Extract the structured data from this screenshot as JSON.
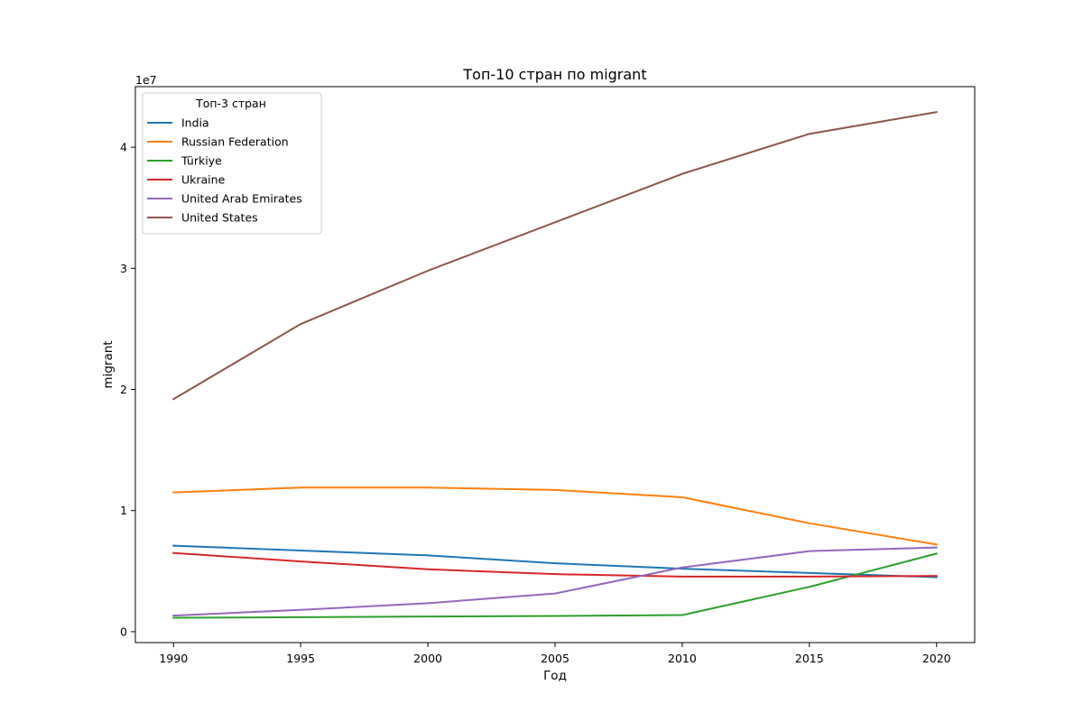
{
  "chart_data": {
    "type": "line",
    "title": "Топ-10 стран по migrant",
    "xlabel": "Год",
    "ylabel": "migrant",
    "offset_text": "1e7",
    "x": [
      1990,
      1995,
      2000,
      2005,
      2010,
      2015,
      2020
    ],
    "xticks": [
      1990,
      1995,
      2000,
      2005,
      2010,
      2015,
      2020
    ],
    "xlim": [
      1988.5,
      2021.5
    ],
    "yticks": [
      {
        "value": 0,
        "label": "0"
      },
      {
        "value": 10000000,
        "label": "1"
      },
      {
        "value": 20000000,
        "label": "2"
      },
      {
        "value": 30000000,
        "label": "3"
      },
      {
        "value": 40000000,
        "label": "4"
      }
    ],
    "ylim": [
      -900000,
      45000000
    ],
    "grid": false,
    "legend": {
      "title": "Топ-3 стран",
      "placement": "top-left"
    },
    "series": [
      {
        "name": "India",
        "color": "#1f77b4",
        "values": [
          7100000,
          6700000,
          6300000,
          5650000,
          5200000,
          4850000,
          4500000
        ]
      },
      {
        "name": "Russian Federation",
        "color": "#ff7f0e",
        "values": [
          11500000,
          11900000,
          11900000,
          11700000,
          11100000,
          8950000,
          7200000
        ]
      },
      {
        "name": "Türkiye",
        "color": "#2ca02c",
        "values": [
          1150000,
          1200000,
          1250000,
          1300000,
          1370000,
          3700000,
          6450000
        ]
      },
      {
        "name": "Ukraine",
        "color": "#d62728",
        "values": [
          6500000,
          5800000,
          5150000,
          4750000,
          4550000,
          4550000,
          4600000
        ]
      },
      {
        "name": "United Arab Emirates",
        "color": "#9467bd",
        "values": [
          1330000,
          1800000,
          2350000,
          3150000,
          5300000,
          6650000,
          6950000
        ]
      },
      {
        "name": "United States",
        "color": "#8c564b",
        "values": [
          19200000,
          25400000,
          29800000,
          33800000,
          37800000,
          41100000,
          42900000
        ]
      }
    ]
  }
}
